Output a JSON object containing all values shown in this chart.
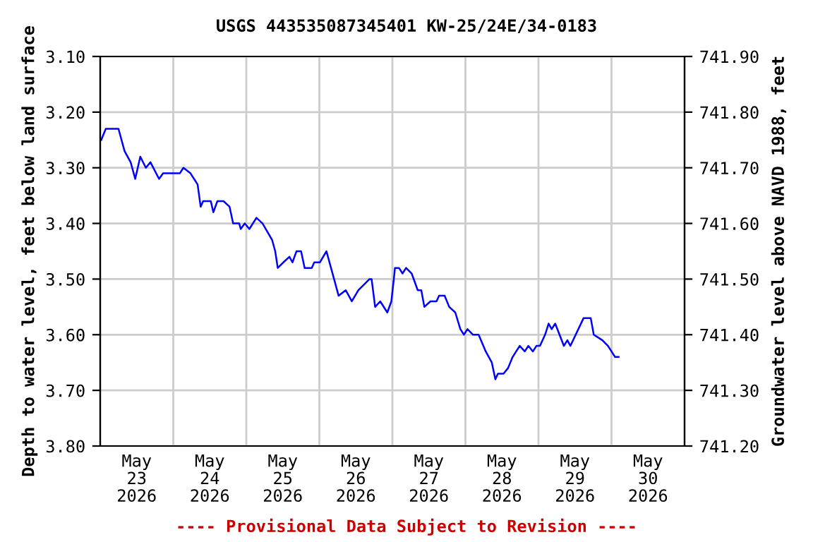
{
  "chart_data": {
    "type": "line",
    "title": "USGS 443535087345401 KW-25/24E/34-0183",
    "ylabel": "Depth to water level, feet below land surface",
    "y2label": "Groundwater level above NAVD 1988, feet",
    "annotations": [
      "---- Provisional Data Subject to Revision ----"
    ],
    "x": [
      "2026-05-23T00:20",
      "2026-05-23T01:50",
      "2026-05-23T06:00",
      "2026-05-23T08:00",
      "2026-05-23T10:00",
      "2026-05-23T11:30",
      "2026-05-23T13:10",
      "2026-05-23T15:00",
      "2026-05-23T16:30",
      "2026-05-23T19:20",
      "2026-05-23T20:40",
      "2026-05-24T02:10",
      "2026-05-24T03:20",
      "2026-05-24T05:40",
      "2026-05-24T08:00",
      "2026-05-24T09:00",
      "2026-05-24T09:50",
      "2026-05-24T12:20",
      "2026-05-24T13:10",
      "2026-05-24T14:30",
      "2026-05-24T16:30",
      "2026-05-24T18:30",
      "2026-05-24T19:40",
      "2026-05-24T21:40",
      "2026-05-24T22:10",
      "2026-05-24T23:30",
      "2026-05-25T01:00",
      "2026-05-25T03:20",
      "2026-05-25T05:20",
      "2026-05-25T08:30",
      "2026-05-25T09:30",
      "2026-05-25T10:20",
      "2026-05-25T12:10",
      "2026-05-25T14:10",
      "2026-05-25T15:10",
      "2026-05-25T16:30",
      "2026-05-25T18:00",
      "2026-05-25T19:10",
      "2026-05-25T21:30",
      "2026-05-25T22:20",
      "2026-05-26T00:10",
      "2026-05-26T02:20",
      "2026-05-26T04:50",
      "2026-05-26T06:20",
      "2026-05-26T08:40",
      "2026-05-26T10:40",
      "2026-05-26T12:50",
      "2026-05-26T16:30",
      "2026-05-26T17:10",
      "2026-05-26T18:20",
      "2026-05-26T20:00",
      "2026-05-26T22:20",
      "2026-05-26T23:40",
      "2026-05-27T00:40",
      "2026-05-27T00:50",
      "2026-05-27T02:10",
      "2026-05-27T03:20",
      "2026-05-27T04:30",
      "2026-05-27T06:20",
      "2026-05-27T08:20",
      "2026-05-27T09:30",
      "2026-05-27T10:30",
      "2026-05-27T12:30",
      "2026-05-27T14:30",
      "2026-05-27T15:20",
      "2026-05-27T17:10",
      "2026-05-27T18:40",
      "2026-05-27T20:40",
      "2026-05-27T22:20",
      "2026-05-27T23:30",
      "2026-05-28T00:40",
      "2026-05-28T02:30",
      "2026-05-28T04:20",
      "2026-05-28T06:40",
      "2026-05-28T08:40",
      "2026-05-28T09:50",
      "2026-05-28T10:40",
      "2026-05-28T12:30",
      "2026-05-28T14:00",
      "2026-05-28T15:30",
      "2026-05-28T17:50",
      "2026-05-28T19:30",
      "2026-05-28T20:40",
      "2026-05-28T22:10",
      "2026-05-28T23:20",
      "2026-05-29T00:30",
      "2026-05-29T02:10",
      "2026-05-29T03:20",
      "2026-05-29T04:20",
      "2026-05-29T05:30",
      "2026-05-29T08:20",
      "2026-05-29T09:30",
      "2026-05-29T10:30",
      "2026-05-29T14:50",
      "2026-05-29T17:10",
      "2026-05-29T18:10",
      "2026-05-29T21:00",
      "2026-05-29T22:50",
      "2026-05-30T01:10",
      "2026-05-30T02:20"
    ],
    "series": [
      {
        "color": "#0000ff",
        "values": [
          3.25,
          3.23,
          3.23,
          3.27,
          3.29,
          3.32,
          3.28,
          3.3,
          3.29,
          3.32,
          3.31,
          3.31,
          3.3,
          3.31,
          3.33,
          3.37,
          3.36,
          3.36,
          3.38,
          3.36,
          3.36,
          3.37,
          3.4,
          3.4,
          3.41,
          3.4,
          3.41,
          3.39,
          3.4,
          3.43,
          3.45,
          3.48,
          3.47,
          3.46,
          3.47,
          3.45,
          3.45,
          3.48,
          3.48,
          3.47,
          3.47,
          3.45,
          3.5,
          3.53,
          3.52,
          3.54,
          3.52,
          3.5,
          3.5,
          3.55,
          3.54,
          3.56,
          3.54,
          3.49,
          3.48,
          3.48,
          3.49,
          3.48,
          3.49,
          3.52,
          3.52,
          3.55,
          3.54,
          3.54,
          3.53,
          3.53,
          3.55,
          3.56,
          3.59,
          3.6,
          3.59,
          3.6,
          3.6,
          3.63,
          3.65,
          3.68,
          3.67,
          3.67,
          3.66,
          3.64,
          3.62,
          3.63,
          3.62,
          3.63,
          3.62,
          3.62,
          3.6,
          3.58,
          3.59,
          3.58,
          3.62,
          3.61,
          3.62,
          3.57,
          3.57,
          3.6,
          3.61,
          3.62,
          3.64,
          3.64
        ]
      }
    ],
    "xlim": [
      "2026-05-23",
      "2026-05-31"
    ],
    "xticks": [
      {
        "value": "2026-05-23T12:00",
        "label": "May\n23\n2026"
      },
      {
        "value": "2026-05-24T12:00",
        "label": "May\n24\n2026"
      },
      {
        "value": "2026-05-25T12:00",
        "label": "May\n25\n2026"
      },
      {
        "value": "2026-05-26T12:00",
        "label": "May\n26\n2026"
      },
      {
        "value": "2026-05-27T12:00",
        "label": "May\n27\n2026"
      },
      {
        "value": "2026-05-28T12:00",
        "label": "May\n28\n2026"
      },
      {
        "value": "2026-05-29T12:00",
        "label": "May\n29\n2026"
      },
      {
        "value": "2026-05-30T12:00",
        "label": "May\n30\n2026"
      },
      {
        "value": "2026-05-24",
        "label": null
      },
      {
        "value": "2026-05-25",
        "label": null
      },
      {
        "value": "2026-05-26",
        "label": null
      },
      {
        "value": "2026-05-27",
        "label": null
      },
      {
        "value": "2026-05-28",
        "label": null
      },
      {
        "value": "2026-05-29",
        "label": null
      },
      {
        "value": "2026-05-30",
        "label": null
      }
    ],
    "ylim": [
      3.8,
      3.1
    ],
    "yticks": [
      {
        "value": 3.1,
        "label": "3.10"
      },
      {
        "value": 3.2,
        "label": "3.20"
      },
      {
        "value": 3.3,
        "label": "3.30"
      },
      {
        "value": 3.4,
        "label": "3.40"
      },
      {
        "value": 3.5,
        "label": "3.50"
      },
      {
        "value": 3.6,
        "label": "3.60"
      },
      {
        "value": 3.7,
        "label": "3.70"
      },
      {
        "value": 3.8,
        "label": "3.80"
      }
    ],
    "y2lim": [
      741.2,
      741.9
    ],
    "y2ticks": [
      {
        "value": 741.2,
        "label": "741.20"
      },
      {
        "value": 741.3,
        "label": "741.30"
      },
      {
        "value": 741.4,
        "label": "741.40"
      },
      {
        "value": 741.5,
        "label": "741.50"
      },
      {
        "value": 741.6,
        "label": "741.60"
      },
      {
        "value": 741.7,
        "label": "741.70"
      },
      {
        "value": 741.8,
        "label": "741.80"
      },
      {
        "value": 741.9,
        "label": "741.90"
      }
    ],
    "grid": true,
    "marker": "none",
    "line_style": "solid",
    "legend": false
  }
}
